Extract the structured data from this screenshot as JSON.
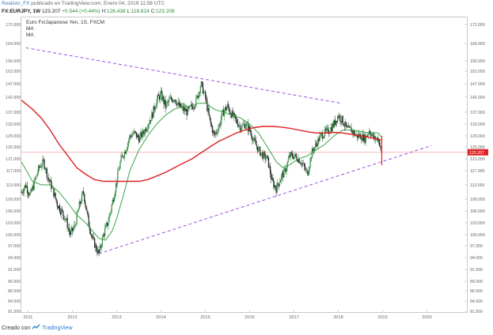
{
  "header": {
    "user": "Realisto_FX",
    "published": "publicado en TradingView.com, Enero 04, 2019 11:58 UTC",
    "symbol": "FX:EURJPY, 1W",
    "last": "123.207",
    "change": "+0.544 (+0.44%)",
    "high_label": "H:",
    "high": "126.438",
    "low_label": "L:",
    "low": "118.824",
    "close_label": "C:",
    "close": "123.208"
  },
  "legend": {
    "title": "Euro Fx/Japanese Yen, 1S, FXCM",
    "ma1": "MA",
    "ma2": "MA"
  },
  "footer": {
    "created_with": "Creado con",
    "brand": "TradingView"
  },
  "colors": {
    "up": "#2e8b3e",
    "down": "#222222",
    "ma_fast": "#3aa34a",
    "ma_slow": "#e02020",
    "trendline": "#9b4fe0",
    "price_line": "#f2a0a0",
    "last_price": "#e02020"
  },
  "chart_data": {
    "type": "candlestick",
    "title": "Euro Fx/Japanese Yen, 1S, FXCM",
    "x_ticks": [
      "2011",
      "2012",
      "2013",
      "2014",
      "2015",
      "2016",
      "2017",
      "2018",
      "2019",
      "2020"
    ],
    "x_range": [
      2010.85,
      2020.9
    ],
    "y_ticks": [
      "172.000",
      "164.000",
      "156.000",
      "152.000",
      "147.000",
      "142.000",
      "137.000",
      "133.000",
      "129.000",
      "125.000",
      "121.000",
      "117.000",
      "113.000",
      "109.000",
      "106.000",
      "103.000",
      "100.000",
      "97.000",
      "94.000",
      "91.500",
      "89.000",
      "86.500",
      "84.500",
      "81.500"
    ],
    "y_range_note": "logarithmic price axis",
    "close_series": [
      [
        2010.85,
        111
      ],
      [
        2010.95,
        113
      ],
      [
        2011.05,
        110
      ],
      [
        2011.15,
        114
      ],
      [
        2011.25,
        118
      ],
      [
        2011.35,
        120
      ],
      [
        2011.45,
        115
      ],
      [
        2011.55,
        112
      ],
      [
        2011.65,
        108
      ],
      [
        2011.75,
        106
      ],
      [
        2011.85,
        104
      ],
      [
        2011.95,
        100
      ],
      [
        2012.05,
        102
      ],
      [
        2012.15,
        107
      ],
      [
        2012.25,
        111
      ],
      [
        2012.35,
        104
      ],
      [
        2012.45,
        99
      ],
      [
        2012.55,
        96
      ],
      [
        2012.6,
        95
      ],
      [
        2012.7,
        100
      ],
      [
        2012.8,
        103
      ],
      [
        2012.9,
        108
      ],
      [
        2013.0,
        114
      ],
      [
        2013.1,
        121
      ],
      [
        2013.2,
        124
      ],
      [
        2013.3,
        129
      ],
      [
        2013.4,
        130
      ],
      [
        2013.5,
        128
      ],
      [
        2013.6,
        130
      ],
      [
        2013.7,
        133
      ],
      [
        2013.8,
        136
      ],
      [
        2013.9,
        141
      ],
      [
        2014.0,
        143
      ],
      [
        2014.1,
        139
      ],
      [
        2014.2,
        141
      ],
      [
        2014.3,
        142
      ],
      [
        2014.4,
        139
      ],
      [
        2014.5,
        138
      ],
      [
        2014.6,
        137
      ],
      [
        2014.7,
        139
      ],
      [
        2014.8,
        141
      ],
      [
        2014.9,
        147
      ],
      [
        2015.0,
        142
      ],
      [
        2015.1,
        134
      ],
      [
        2015.2,
        129
      ],
      [
        2015.3,
        132
      ],
      [
        2015.4,
        137
      ],
      [
        2015.5,
        139
      ],
      [
        2015.6,
        136
      ],
      [
        2015.7,
        134
      ],
      [
        2015.8,
        132
      ],
      [
        2015.9,
        133
      ],
      [
        2016.0,
        131
      ],
      [
        2016.1,
        127
      ],
      [
        2016.2,
        124
      ],
      [
        2016.3,
        122
      ],
      [
        2016.4,
        121
      ],
      [
        2016.5,
        114
      ],
      [
        2016.6,
        112
      ],
      [
        2016.7,
        115
      ],
      [
        2016.8,
        117
      ],
      [
        2016.9,
        122
      ],
      [
        2017.0,
        122
      ],
      [
        2017.1,
        121
      ],
      [
        2017.2,
        119
      ],
      [
        2017.3,
        116
      ],
      [
        2017.4,
        123
      ],
      [
        2017.5,
        126
      ],
      [
        2017.6,
        129
      ],
      [
        2017.7,
        130
      ],
      [
        2017.8,
        131
      ],
      [
        2017.9,
        133
      ],
      [
        2018.0,
        136
      ],
      [
        2018.1,
        134
      ],
      [
        2018.2,
        131
      ],
      [
        2018.3,
        131
      ],
      [
        2018.4,
        129
      ],
      [
        2018.5,
        129
      ],
      [
        2018.6,
        128
      ],
      [
        2018.7,
        131
      ],
      [
        2018.8,
        128
      ],
      [
        2018.9,
        128
      ],
      [
        2018.98,
        123.2
      ]
    ],
    "series": [
      {
        "name": "MA",
        "role": "fast moving average",
        "points": [
          [
            2010.85,
            120
          ],
          [
            2011.1,
            114
          ],
          [
            2011.3,
            113
          ],
          [
            2011.5,
            113
          ],
          [
            2011.7,
            111
          ],
          [
            2011.9,
            108
          ],
          [
            2012.1,
            105
          ],
          [
            2012.3,
            103
          ],
          [
            2012.45,
            101
          ],
          [
            2012.6,
            99
          ],
          [
            2012.75,
            98.5
          ],
          [
            2012.9,
            101
          ],
          [
            2013.0,
            104
          ],
          [
            2013.15,
            110
          ],
          [
            2013.3,
            117
          ],
          [
            2013.5,
            124
          ],
          [
            2013.7,
            129
          ],
          [
            2013.9,
            133
          ],
          [
            2014.1,
            136
          ],
          [
            2014.3,
            138
          ],
          [
            2014.5,
            139
          ],
          [
            2014.7,
            139
          ],
          [
            2014.85,
            140
          ],
          [
            2015.0,
            140
          ],
          [
            2015.2,
            138
          ],
          [
            2015.4,
            137
          ],
          [
            2015.6,
            136
          ],
          [
            2015.8,
            135
          ],
          [
            2016.0,
            133
          ],
          [
            2016.2,
            130
          ],
          [
            2016.4,
            125
          ],
          [
            2016.6,
            120
          ],
          [
            2016.75,
            118
          ],
          [
            2016.9,
            119
          ],
          [
            2017.1,
            121
          ],
          [
            2017.3,
            122
          ],
          [
            2017.5,
            124
          ],
          [
            2017.7,
            126
          ],
          [
            2017.9,
            129
          ],
          [
            2018.1,
            131
          ],
          [
            2018.3,
            131
          ],
          [
            2018.5,
            130.5
          ],
          [
            2018.7,
            130
          ],
          [
            2018.9,
            130
          ],
          [
            2018.98,
            128.5
          ]
        ]
      },
      {
        "name": "MA",
        "role": "slow moving average",
        "points": [
          [
            2010.85,
            141
          ],
          [
            2011.1,
            138
          ],
          [
            2011.3,
            135
          ],
          [
            2011.5,
            131
          ],
          [
            2011.7,
            126
          ],
          [
            2011.9,
            122
          ],
          [
            2012.1,
            118
          ],
          [
            2012.3,
            116
          ],
          [
            2012.5,
            114.5
          ],
          [
            2012.7,
            114
          ],
          [
            2012.9,
            114
          ],
          [
            2013.1,
            114
          ],
          [
            2013.3,
            114
          ],
          [
            2013.5,
            114
          ],
          [
            2013.7,
            114.5
          ],
          [
            2013.9,
            115.5
          ],
          [
            2014.1,
            116.5
          ],
          [
            2014.3,
            118
          ],
          [
            2014.5,
            119.5
          ],
          [
            2014.7,
            121
          ],
          [
            2014.9,
            123
          ],
          [
            2015.1,
            125
          ],
          [
            2015.3,
            127
          ],
          [
            2015.5,
            128.5
          ],
          [
            2015.7,
            130
          ],
          [
            2015.9,
            131
          ],
          [
            2016.1,
            131.8
          ],
          [
            2016.3,
            132.2
          ],
          [
            2016.5,
            132.2
          ],
          [
            2016.7,
            132
          ],
          [
            2016.9,
            131.6
          ],
          [
            2017.1,
            131
          ],
          [
            2017.3,
            130.4
          ],
          [
            2017.5,
            130
          ],
          [
            2017.7,
            130
          ],
          [
            2017.9,
            130.2
          ],
          [
            2018.1,
            130
          ],
          [
            2018.3,
            129.5
          ],
          [
            2018.5,
            129
          ],
          [
            2018.7,
            128.5
          ],
          [
            2018.9,
            127.8
          ],
          [
            2018.98,
            127.5
          ]
        ]
      }
    ],
    "trendlines": [
      {
        "name": "upper resistance",
        "from": [
          2010.95,
          162
        ],
        "to": [
          2018.05,
          140
        ]
      },
      {
        "name": "lower support",
        "from": [
          2012.6,
          95
        ],
        "to": [
          2020.1,
          125.5
        ]
      }
    ],
    "horizontal_line": 123.2,
    "last_price": "123.207"
  }
}
